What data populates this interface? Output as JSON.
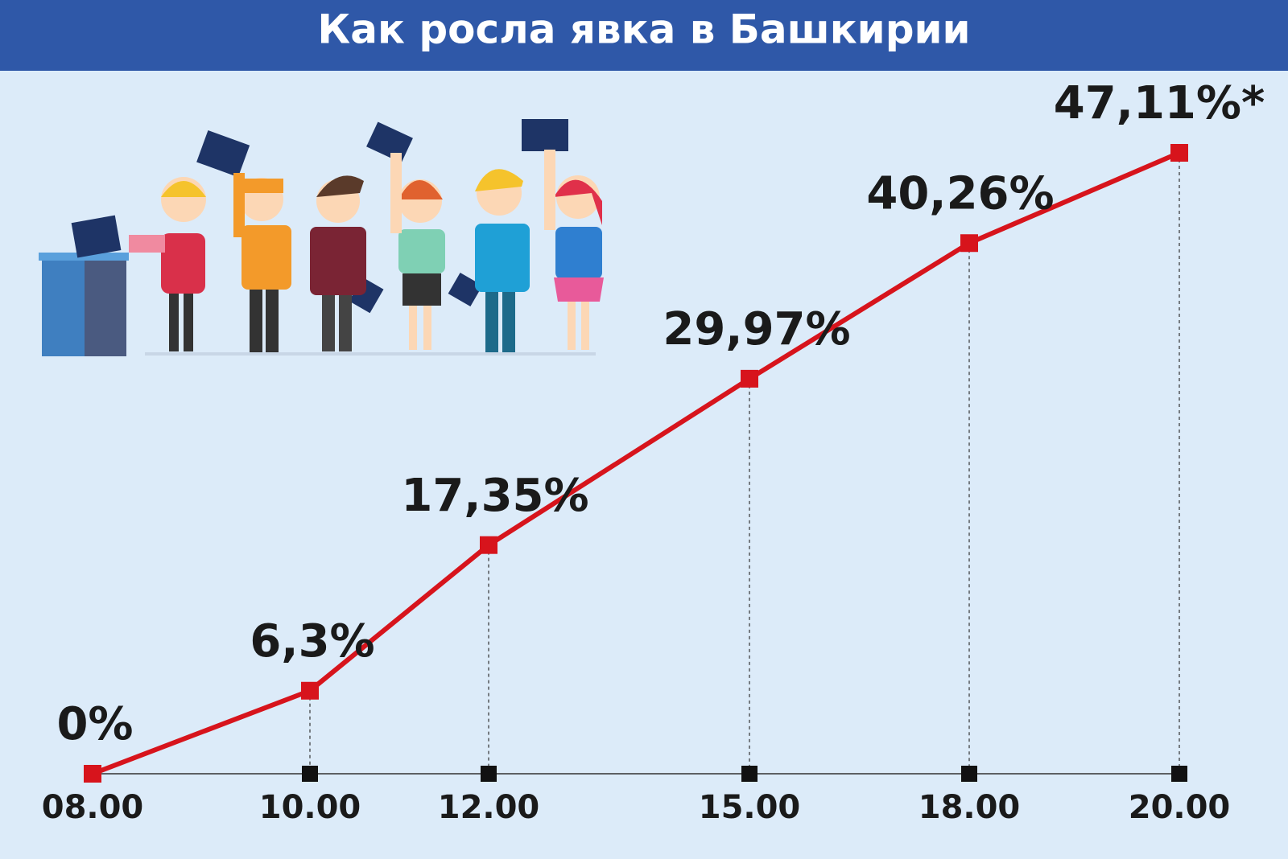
{
  "chart_data": {
    "type": "line",
    "title": "Как росла явка в Башкирии",
    "categories": [
      "08.00",
      "10.00",
      "12.00",
      "15.00",
      "18.00",
      "20.00"
    ],
    "values": [
      0,
      6.3,
      17.35,
      29.97,
      40.26,
      47.11
    ],
    "value_labels": [
      "0%",
      "6,3%",
      "17,35%",
      "29,97%",
      "40,26%",
      "47,11%*"
    ],
    "color": "#d7141c"
  }
}
